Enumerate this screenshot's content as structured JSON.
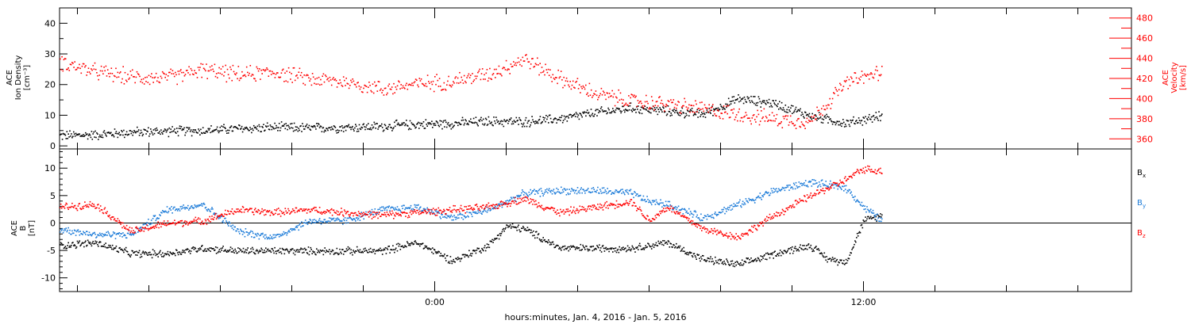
{
  "chart_data": [
    {
      "type": "scatter",
      "title": "",
      "xlabel": "hours:minutes, Jan.  4, 2016 - Jan.  5, 2016",
      "x_ticks": [
        {
          "value": 0,
          "label": "0:00"
        },
        {
          "value": 12,
          "label": "12:00"
        }
      ],
      "xlim": [
        -10.5,
        19.5
      ],
      "ylabel_left": "ACE\nIon Density\n[cm⁻³]",
      "ylim_left": [
        -1,
        45
      ],
      "yticks_left": [
        0,
        10,
        20,
        30,
        40
      ],
      "ylabel_right": "ACE\nVelocity\n[km/s]",
      "ylim_right": [
        350,
        490
      ],
      "yticks_right": [
        360,
        380,
        400,
        420,
        440,
        460,
        480
      ],
      "series": [
        {
          "axis": "left",
          "color": "#000000",
          "x": [
            -10.5,
            -9.5,
            -8.5,
            -7.5,
            -6.5,
            -5.5,
            -4.5,
            -3.5,
            -2.5,
            -1.5,
            -0.5,
            0.5,
            1.5,
            2.5,
            3.5,
            4.5,
            5.5,
            6.5,
            7.5,
            8.5,
            9.5,
            10.5,
            11.5,
            12.5
          ],
          "y": [
            3.5,
            3.8,
            4.6,
            5.0,
            5.2,
            5.8,
            6.2,
            6.0,
            6.2,
            6.5,
            7.2,
            7.5,
            8.2,
            8.0,
            9.0,
            11.0,
            12.5,
            11.5,
            10.5,
            15.5,
            14.0,
            10.0,
            7.5,
            10.0
          ]
        },
        {
          "axis": "right",
          "color": "#ff0000",
          "x": [
            -10.5,
            -9.5,
            -8.5,
            -7.5,
            -6.5,
            -5.5,
            -4.5,
            -3.5,
            -2.5,
            -1.5,
            -0.5,
            0.5,
            1.5,
            2.5,
            3.5,
            4.5,
            5.5,
            6.5,
            7.5,
            8.5,
            9.5,
            10.5,
            11.5,
            12.5
          ],
          "y": [
            437,
            427,
            422,
            421,
            429,
            424,
            427,
            420,
            417,
            410,
            415,
            418,
            425,
            440,
            420,
            405,
            398,
            395,
            390,
            385,
            380,
            378,
            416,
            427
          ]
        }
      ]
    },
    {
      "type": "scatter",
      "title": "",
      "xlabel": "hours:minutes, Jan.  4, 2016 - Jan.  5, 2016",
      "x_ticks": [
        {
          "value": 0,
          "label": "0:00"
        },
        {
          "value": 12,
          "label": "12:00"
        }
      ],
      "xlim": [
        -10.5,
        19.5
      ],
      "ylabel_left": "ACE\nB\n[nT]",
      "ylim_left": [
        -12.5,
        13.5
      ],
      "yticks_left": [
        -10,
        -5,
        0,
        5,
        10
      ],
      "zero_line": true,
      "series": [
        {
          "name": "Bx",
          "color": "#000000",
          "x": [
            -10.5,
            -9.5,
            -8.5,
            -7.5,
            -6.5,
            -5.5,
            -4.5,
            -3.5,
            -2.5,
            -1.5,
            -0.5,
            0.5,
            1.5,
            2.0,
            2.5,
            3.5,
            4.5,
            5.5,
            6.5,
            7.5,
            8.5,
            9.5,
            10.5,
            11.0,
            11.5,
            12.0,
            12.5
          ],
          "y": [
            -4,
            -3.5,
            -5.5,
            -5.5,
            -4.5,
            -5.0,
            -5.0,
            -5.0,
            -5.0,
            -5.0,
            -3.5,
            -6.8,
            -4.0,
            -0.5,
            -1.0,
            -4.5,
            -4.5,
            -4.5,
            -3.5,
            -6.5,
            -7.5,
            -5.5,
            -4.0,
            -6.5,
            -7.0,
            0.5,
            1.5
          ]
        },
        {
          "name": "By",
          "color": "#1a7ad8",
          "x": [
            -10.5,
            -9.5,
            -8.5,
            -7.5,
            -6.5,
            -5.5,
            -4.5,
            -3.5,
            -2.5,
            -1.5,
            -0.5,
            0.5,
            1.5,
            2.5,
            3.5,
            4.5,
            5.5,
            6.0,
            6.5,
            7.5,
            8.5,
            9.5,
            10.5,
            11.5,
            12.0,
            12.5
          ],
          "y": [
            -1,
            -2.0,
            -2.0,
            2.5,
            3.5,
            -1.5,
            -2.5,
            0.5,
            0.5,
            2.5,
            3.0,
            1.0,
            2.5,
            5.5,
            6.0,
            6.0,
            5.5,
            4.0,
            3.5,
            1.0,
            3.5,
            6.0,
            7.5,
            6.5,
            3.0,
            0.5
          ]
        },
        {
          "name": "Bz",
          "color": "#ff0000",
          "x": [
            -10.5,
            -9.5,
            -8.5,
            -7.5,
            -6.5,
            -5.5,
            -4.5,
            -3.5,
            -2.5,
            -1.5,
            -0.5,
            0.5,
            1.5,
            2.5,
            3.5,
            4.5,
            5.5,
            6.0,
            6.5,
            7.5,
            8.5,
            9.5,
            10.5,
            11.5,
            12.0,
            12.5
          ],
          "y": [
            3.0,
            3.5,
            -1.5,
            0.0,
            0.5,
            2.5,
            2.0,
            2.5,
            2.0,
            1.5,
            2.0,
            2.5,
            3.0,
            4.5,
            2.0,
            3.0,
            4.0,
            0.5,
            3.0,
            -1.0,
            -2.5,
            1.5,
            5.0,
            8.0,
            10.0,
            9.5
          ]
        }
      ]
    }
  ]
}
